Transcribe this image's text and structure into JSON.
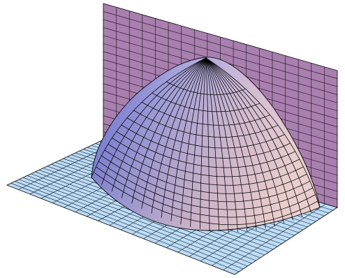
{
  "figure": {
    "kind": "3d-surface-plot",
    "surface": "half-paraboloid",
    "grid": true,
    "colors": {
      "background": "#ffffff",
      "wall_fill": "#a87fae",
      "floor_fill": "#bddcf6",
      "dome_dark": "#6a6fd4",
      "dome_light": "#f2d0d5",
      "grid_line": "#000000"
    }
  }
}
